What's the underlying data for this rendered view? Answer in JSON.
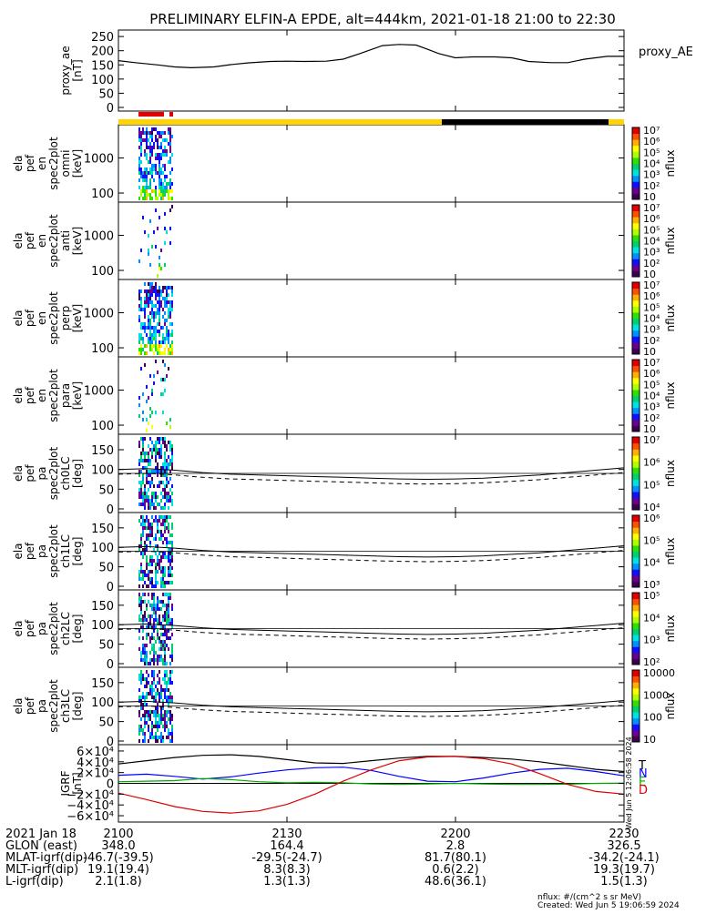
{
  "title": "PRELIMINARY ELFIN-A EPDE, alt=444km, 2021-01-18 21:00 to 22:30",
  "colors": {
    "frame": "#000000",
    "science_bar": "#e10000",
    "sunlight": "#ffd400",
    "eclipse": "#000000",
    "igrf_T": "#000000",
    "igrf_N": "#0000ff",
    "igrf_E": "#00aa00",
    "igrf_D": "#dd0000"
  },
  "chart_data": [
    {
      "type": "line",
      "name": "proxy_ae",
      "panel_label": [
        "proxy_ae",
        "[nT]"
      ],
      "legend": "proxy_AE",
      "ylim": [
        0,
        260
      ],
      "yticks": [
        "0",
        "50",
        "100",
        "150",
        "200",
        "250"
      ],
      "series": [
        {
          "name": "proxy_AE",
          "x": [
            0,
            3,
            7,
            10,
            13,
            17,
            20,
            23,
            27,
            30,
            33,
            37,
            40,
            43,
            47,
            50,
            53,
            55,
            57,
            60,
            63,
            67,
            70,
            73,
            77,
            80,
            83,
            87,
            90
          ],
          "y": [
            165,
            158,
            150,
            143,
            140,
            143,
            151,
            157,
            162,
            163,
            162,
            163,
            170,
            190,
            218,
            222,
            220,
            205,
            190,
            175,
            178,
            178,
            175,
            162,
            158,
            158,
            170,
            180,
            180
          ]
        }
      ]
    },
    {
      "type": "heatmap",
      "name": "omni",
      "panel_label": [
        "ela",
        "pef",
        "en",
        "spec2plot",
        "omni",
        "[keV]"
      ],
      "ylog": true,
      "ylim": [
        70,
        7000
      ],
      "yticks": [
        "100",
        "1000"
      ],
      "colorbar": {
        "label": "nflux",
        "ticks": [
          "10",
          "10²",
          "10³",
          "10⁴",
          "10⁵",
          "10⁶",
          "10⁷"
        ]
      }
    },
    {
      "type": "heatmap",
      "name": "anti",
      "panel_label": [
        "ela",
        "pef",
        "en",
        "spec2plot",
        "anti",
        "[keV]"
      ],
      "ylog": true,
      "ylim": [
        70,
        7000
      ],
      "yticks": [
        "100",
        "1000"
      ],
      "colorbar": {
        "label": "nflux",
        "ticks": [
          "10",
          "10²",
          "10³",
          "10⁴",
          "10⁵",
          "10⁶",
          "10⁷"
        ]
      }
    },
    {
      "type": "heatmap",
      "name": "perp",
      "panel_label": [
        "ela",
        "pef",
        "en",
        "spec2plot",
        "perp",
        "[keV]"
      ],
      "ylog": true,
      "ylim": [
        70,
        7000
      ],
      "yticks": [
        "100",
        "1000"
      ],
      "colorbar": {
        "label": "nflux",
        "ticks": [
          "10",
          "10²",
          "10³",
          "10⁴",
          "10⁵",
          "10⁶",
          "10⁷"
        ]
      }
    },
    {
      "type": "heatmap",
      "name": "para",
      "panel_label": [
        "ela",
        "pef",
        "en",
        "spec2plot",
        "para",
        "[keV]"
      ],
      "ylog": true,
      "ylim": [
        70,
        7000
      ],
      "yticks": [
        "100",
        "1000"
      ],
      "colorbar": {
        "label": "nflux",
        "ticks": [
          "10",
          "10²",
          "10³",
          "10⁴",
          "10⁵",
          "10⁶",
          "10⁷"
        ]
      }
    },
    {
      "type": "heatmap",
      "name": "ch0LC",
      "panel_label": [
        "ela",
        "pef",
        "pa",
        "spec2plot",
        "ch0LC",
        "[deg]"
      ],
      "ylim": [
        0,
        180
      ],
      "yticks": [
        "0",
        "50",
        "100",
        "150"
      ],
      "colorbar": {
        "label": "nflux",
        "ticks": [
          "10⁴",
          "10⁵",
          "10⁶",
          "10⁷"
        ]
      }
    },
    {
      "type": "heatmap",
      "name": "ch1LC",
      "panel_label": [
        "ela",
        "pef",
        "pa",
        "spec2plot",
        "ch1LC",
        "[deg]"
      ],
      "ylim": [
        0,
        180
      ],
      "yticks": [
        "0",
        "50",
        "100",
        "150"
      ],
      "colorbar": {
        "label": "nflux",
        "ticks": [
          "10³",
          "10⁴",
          "10⁵",
          "10⁶"
        ]
      }
    },
    {
      "type": "heatmap",
      "name": "ch2LC",
      "panel_label": [
        "ela",
        "pef",
        "pa",
        "spec2plot",
        "ch2LC",
        "[deg]"
      ],
      "ylim": [
        0,
        180
      ],
      "yticks": [
        "0",
        "50",
        "100",
        "150"
      ],
      "colorbar": {
        "label": "nflux",
        "ticks": [
          "10²",
          "10³",
          "10⁴",
          "10⁵"
        ]
      }
    },
    {
      "type": "heatmap",
      "name": "ch3LC",
      "panel_label": [
        "ela",
        "pef",
        "pa",
        "spec2plot",
        "ch3LC",
        "[deg]"
      ],
      "ylim": [
        0,
        180
      ],
      "yticks": [
        "0",
        "50",
        "100",
        "150"
      ],
      "colorbar": {
        "label": "nflux",
        "ticks": [
          "10",
          "100",
          "1000",
          "10000"
        ]
      }
    },
    {
      "type": "line",
      "name": "igrf",
      "panel_label": [
        "IGRF",
        "[nT]"
      ],
      "ylim": [
        -65000,
        65000
      ],
      "yticks": [
        "6×10⁴",
        "4×10⁴",
        "2×10⁴",
        "0",
        "−2×10⁴",
        "−4×10⁴",
        "−6×10⁴"
      ],
      "ytick_values": [
        60000,
        40000,
        20000,
        0,
        -20000,
        -40000,
        -60000
      ],
      "legend": [
        "T",
        "N",
        "E",
        "D"
      ],
      "stamp": "Wed Jun  5 12:06:58 2024",
      "series": [
        {
          "name": "T",
          "x": [
            0,
            5,
            10,
            15,
            20,
            25,
            30,
            35,
            40,
            45,
            50,
            55,
            60,
            65,
            70,
            75,
            80,
            85,
            90
          ],
          "y": [
            36000,
            42000,
            48000,
            52000,
            53000,
            50000,
            44000,
            38000,
            37000,
            42000,
            47000,
            50000,
            50000,
            48000,
            45000,
            40000,
            33000,
            26000,
            22000
          ]
        },
        {
          "name": "N",
          "x": [
            0,
            5,
            10,
            15,
            20,
            25,
            30,
            35,
            40,
            45,
            50,
            55,
            60,
            65,
            70,
            75,
            80,
            85,
            90
          ],
          "y": [
            15000,
            17000,
            13000,
            8000,
            12000,
            19000,
            25000,
            29000,
            30000,
            24000,
            13000,
            4000,
            3000,
            10000,
            19000,
            26000,
            28000,
            22000,
            14000
          ]
        },
        {
          "name": "E",
          "x": [
            0,
            5,
            10,
            15,
            20,
            25,
            30,
            35,
            40,
            45,
            50,
            55,
            60,
            65,
            70,
            75,
            80,
            85,
            90
          ],
          "y": [
            3000,
            4000,
            5000,
            9000,
            7000,
            3000,
            1000,
            2000,
            1000,
            -1000,
            -2000,
            -1000,
            0,
            -1000,
            -2000,
            -2000,
            -1500,
            0,
            500
          ]
        },
        {
          "name": "D",
          "x": [
            0,
            5,
            10,
            15,
            20,
            25,
            30,
            35,
            40,
            45,
            50,
            55,
            60,
            65,
            70,
            75,
            80,
            85,
            90
          ],
          "y": [
            -18000,
            -30000,
            -43000,
            -52000,
            -55000,
            -51000,
            -39000,
            -20000,
            4000,
            25000,
            42000,
            49000,
            50000,
            46000,
            36000,
            18000,
            -2000,
            -15000,
            -20000
          ]
        }
      ]
    }
  ],
  "xaxis": {
    "ticks": [
      "2100",
      "2130",
      "2200",
      "2230"
    ],
    "rows": [
      {
        "label": "2021 Jan 18",
        "values": [
          "2100",
          "2130",
          "2200",
          "2230"
        ]
      },
      {
        "label": "GLON (east)",
        "values": [
          "348.0",
          "164.4",
          "2.8",
          "326.5"
        ]
      },
      {
        "label": "MLAT-igrf(dip)",
        "values": [
          "-46.7(-39.5)",
          "-29.5(-24.7)",
          "81.7(80.1)",
          "-34.2(-24.1)"
        ]
      },
      {
        "label": "MLT-igrf(dip)",
        "values": [
          "19.1(19.4)",
          "8.3(8.3)",
          "0.6(2.2)",
          "19.3(19.7)"
        ]
      },
      {
        "label": "L-igrf(dip)",
        "values": [
          "2.1(1.8)",
          "1.3(1.3)",
          "48.6(36.1)",
          "1.5(1.3)"
        ]
      }
    ]
  },
  "footer": {
    "units": "nflux: #/(cm^2 s sr MeV)",
    "created": "Created: Wed Jun  5 19:06:59 2024"
  }
}
